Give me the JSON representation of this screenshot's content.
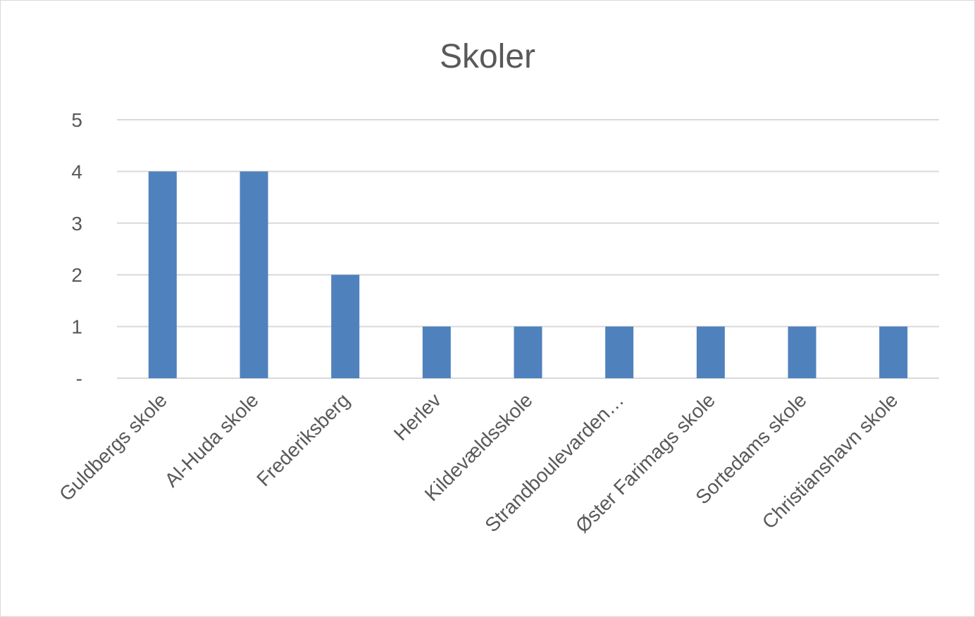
{
  "chart_data": {
    "type": "bar",
    "title": "Skoler",
    "categories": [
      "Guldbergs skole",
      "Al-Huda skole",
      "Frederiksberg",
      "Herlev",
      "Kildevældsskole",
      "Strandboulevarden…",
      "Øster Farimags skole",
      "Sortedams skole",
      "Christianshavn skole"
    ],
    "values": [
      4,
      4,
      2,
      1,
      1,
      1,
      1,
      1,
      1
    ],
    "ylim": [
      0,
      5
    ],
    "yticks": [
      {
        "value": 0,
        "label": "-"
      },
      {
        "value": 1,
        "label": "1"
      },
      {
        "value": 2,
        "label": "2"
      },
      {
        "value": 3,
        "label": "3"
      },
      {
        "value": 4,
        "label": "4"
      },
      {
        "value": 5,
        "label": "5"
      }
    ],
    "grid": true,
    "bar_color": "#4f81bd"
  }
}
